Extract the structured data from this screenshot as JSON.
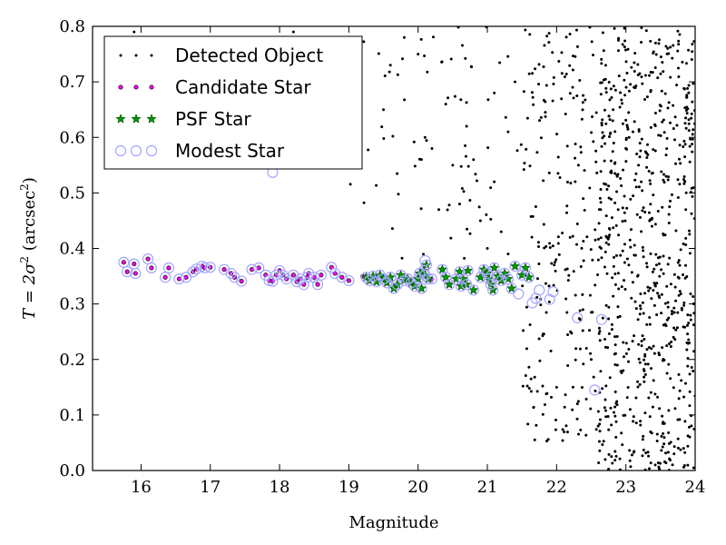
{
  "chart_data": {
    "type": "scatter",
    "xlabel": "Magnitude",
    "ylabel_prefix": "T = 2σ",
    "ylabel_power": "2",
    "ylabel_unit_open": " (arcsec",
    "ylabel_unit_power": "2",
    "ylabel_unit_close": ")",
    "xlim": [
      15.3,
      24.0
    ],
    "ylim": [
      0.0,
      0.8
    ],
    "x_ticks": [
      16,
      17,
      18,
      19,
      20,
      21,
      22,
      23,
      24
    ],
    "y_ticks": [
      0.0,
      0.1,
      0.2,
      0.3,
      0.4,
      0.5,
      0.6,
      0.7,
      0.8
    ],
    "x_tick_labels": [
      "16",
      "17",
      "18",
      "19",
      "20",
      "21",
      "22",
      "23",
      "24"
    ],
    "y_tick_labels": [
      "0.0",
      "0.1",
      "0.2",
      "0.3",
      "0.4",
      "0.5",
      "0.6",
      "0.7",
      "0.8"
    ],
    "grid": false,
    "legend_position": "top-left",
    "series": [
      {
        "name": "Detected Object",
        "marker": "dot",
        "color": "#000000",
        "note_density": [
          {
            "x_range": [
              19.0,
              21.5
            ],
            "y_range": [
              0.38,
              0.8
            ],
            "count": 70
          },
          {
            "x_range": [
              21.5,
              22.6
            ],
            "y_range": [
              0.05,
              0.8
            ],
            "count": 220
          },
          {
            "x_range": [
              22.6,
              24.0
            ],
            "y_range": [
              0.0,
              0.8
            ],
            "count": 700
          }
        ],
        "x": [
          19.8,
          20.0,
          20.1,
          20.2,
          20.4,
          20.5,
          20.6,
          20.7,
          20.9,
          21.0,
          21.1,
          21.2,
          21.3,
          21.4,
          19.5,
          19.6,
          20.3,
          20.8,
          21.1,
          21.3,
          15.9,
          17.9,
          18.2,
          18.8,
          19.1,
          22.0,
          22.2,
          22.3,
          22.5,
          22.6
        ],
        "y": [
          0.78,
          0.75,
          0.6,
          0.58,
          0.66,
          0.55,
          0.48,
          0.62,
          0.45,
          0.4,
          0.52,
          0.43,
          0.39,
          0.7,
          0.65,
          0.73,
          0.47,
          0.56,
          0.68,
          0.61,
          0.79,
          0.76,
          0.79,
          0.71,
          0.77,
          0.15,
          0.25,
          0.12,
          0.2,
          0.08
        ]
      },
      {
        "name": "Candidate Star",
        "marker": "circle",
        "color": "#ff00ff",
        "x": [
          15.75,
          15.8,
          15.9,
          15.92,
          16.1,
          16.15,
          16.35,
          16.4,
          16.55,
          16.65,
          16.75,
          16.8,
          16.88,
          16.92,
          17.0,
          17.2,
          17.3,
          17.35,
          17.45,
          17.6,
          17.7,
          17.8,
          17.85,
          17.9,
          17.95,
          18.0,
          18.05,
          18.1,
          18.2,
          18.25,
          18.3,
          18.35,
          18.4,
          18.42,
          18.5,
          18.55,
          18.6,
          18.75,
          18.8,
          18.9,
          19.0,
          19.2,
          19.3,
          19.4,
          20.2
        ],
        "y": [
          0.375,
          0.358,
          0.372,
          0.355,
          0.381,
          0.365,
          0.348,
          0.365,
          0.345,
          0.348,
          0.358,
          0.363,
          0.368,
          0.365,
          0.366,
          0.362,
          0.355,
          0.348,
          0.341,
          0.362,
          0.365,
          0.352,
          0.342,
          0.341,
          0.352,
          0.36,
          0.352,
          0.345,
          0.352,
          0.34,
          0.345,
          0.335,
          0.348,
          0.355,
          0.348,
          0.335,
          0.352,
          0.366,
          0.355,
          0.348,
          0.342,
          0.35,
          0.345,
          0.348,
          0.345
        ]
      },
      {
        "name": "PSF Star",
        "marker": "star",
        "color": "#009900",
        "x": [
          19.25,
          19.3,
          19.35,
          19.4,
          19.45,
          19.5,
          19.55,
          19.6,
          19.65,
          19.7,
          19.75,
          19.8,
          19.85,
          19.9,
          19.95,
          20.0,
          20.02,
          20.05,
          20.08,
          20.1,
          20.12,
          20.15,
          20.35,
          20.4,
          20.45,
          20.55,
          20.6,
          20.62,
          20.65,
          20.7,
          20.72,
          20.8,
          20.9,
          20.95,
          21.0,
          21.02,
          21.05,
          21.08,
          21.1,
          21.15,
          21.2,
          21.25,
          21.3,
          21.35,
          21.4,
          21.5,
          21.55,
          21.6
        ],
        "y": [
          0.348,
          0.342,
          0.35,
          0.34,
          0.352,
          0.345,
          0.338,
          0.348,
          0.328,
          0.335,
          0.352,
          0.342,
          0.345,
          0.338,
          0.332,
          0.345,
          0.355,
          0.328,
          0.36,
          0.352,
          0.37,
          0.345,
          0.362,
          0.348,
          0.335,
          0.345,
          0.358,
          0.332,
          0.345,
          0.335,
          0.36,
          0.325,
          0.348,
          0.362,
          0.355,
          0.345,
          0.335,
          0.325,
          0.365,
          0.35,
          0.342,
          0.355,
          0.345,
          0.328,
          0.368,
          0.352,
          0.365,
          0.348
        ]
      },
      {
        "name": "Modest Star",
        "marker": "open-circle",
        "color": "#a5a5ff",
        "x": [
          15.75,
          15.8,
          15.9,
          15.92,
          16.1,
          16.15,
          16.35,
          16.4,
          16.55,
          16.65,
          16.75,
          16.8,
          16.88,
          16.92,
          17.0,
          17.2,
          17.3,
          17.35,
          17.45,
          17.6,
          17.7,
          17.8,
          17.85,
          17.9,
          17.95,
          18.0,
          18.05,
          18.1,
          18.2,
          18.25,
          18.3,
          18.35,
          18.4,
          18.42,
          18.5,
          18.55,
          18.6,
          18.75,
          18.8,
          18.9,
          19.0,
          19.25,
          19.3,
          19.35,
          19.4,
          19.45,
          19.5,
          19.55,
          19.6,
          19.65,
          19.7,
          19.75,
          19.8,
          19.85,
          19.9,
          19.95,
          20.0,
          20.02,
          20.05,
          20.08,
          20.1,
          20.12,
          20.15,
          20.2,
          20.35,
          20.4,
          20.45,
          20.55,
          20.6,
          20.62,
          20.65,
          20.7,
          20.72,
          20.8,
          20.9,
          20.95,
          21.0,
          21.02,
          21.05,
          21.08,
          21.1,
          21.15,
          21.2,
          21.25,
          21.3,
          21.35,
          21.4,
          21.45,
          21.5,
          21.55,
          21.6,
          21.65,
          21.7,
          21.75,
          21.9,
          21.95,
          22.3,
          22.55,
          22.65,
          17.9,
          20.1
        ],
        "y": [
          0.375,
          0.358,
          0.372,
          0.355,
          0.381,
          0.365,
          0.348,
          0.365,
          0.345,
          0.348,
          0.358,
          0.363,
          0.368,
          0.365,
          0.366,
          0.362,
          0.355,
          0.348,
          0.341,
          0.362,
          0.365,
          0.352,
          0.342,
          0.341,
          0.352,
          0.36,
          0.352,
          0.345,
          0.352,
          0.34,
          0.345,
          0.335,
          0.348,
          0.355,
          0.348,
          0.335,
          0.352,
          0.366,
          0.355,
          0.348,
          0.342,
          0.348,
          0.342,
          0.35,
          0.34,
          0.352,
          0.345,
          0.338,
          0.348,
          0.328,
          0.335,
          0.352,
          0.342,
          0.345,
          0.338,
          0.332,
          0.345,
          0.355,
          0.328,
          0.36,
          0.352,
          0.37,
          0.345,
          0.345,
          0.362,
          0.348,
          0.335,
          0.345,
          0.358,
          0.332,
          0.345,
          0.335,
          0.36,
          0.325,
          0.348,
          0.362,
          0.355,
          0.345,
          0.335,
          0.325,
          0.365,
          0.35,
          0.342,
          0.355,
          0.345,
          0.328,
          0.368,
          0.318,
          0.352,
          0.365,
          0.348,
          0.302,
          0.31,
          0.325,
          0.308,
          0.322,
          0.275,
          0.145,
          0.272,
          0.537,
          0.378
        ]
      }
    ]
  }
}
